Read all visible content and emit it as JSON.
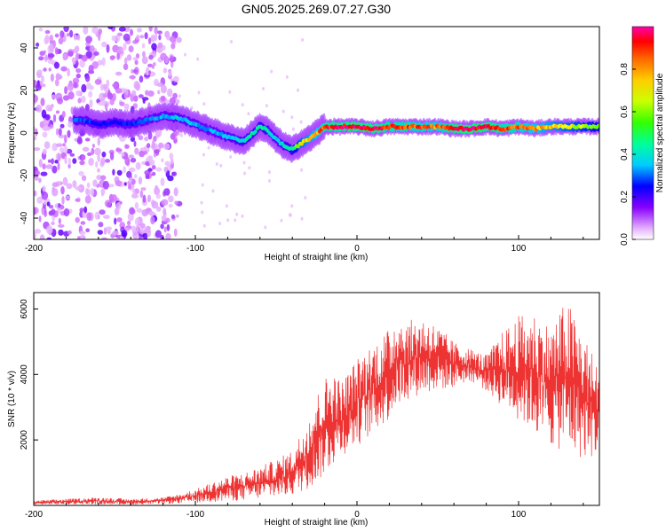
{
  "figure_title": "GN05.2025.269.07.27.G30",
  "chart_data": [
    {
      "type": "heatmap",
      "title": "GN05.2025.269.07.27.G30",
      "xlabel": "Height of straight line (km)",
      "ylabel": "Frequency (Hz)",
      "xlim": [
        -200,
        150
      ],
      "ylim": [
        -50,
        50
      ],
      "xticks": [
        -200,
        -100,
        0,
        100
      ],
      "yticks": [
        -40,
        -20,
        0,
        20,
        40
      ],
      "colorbar": {
        "label": "Normalized spectral amplitude",
        "range": [
          0.0,
          1.0
        ],
        "ticks": [
          0.0,
          0.2,
          0.4,
          0.6,
          0.8
        ],
        "colormap": [
          "#ffffff",
          "#cc66ff",
          "#6600ff",
          "#0000ff",
          "#00ccff",
          "#00ff66",
          "#66ff00",
          "#ffff00",
          "#ff8800",
          "#ff0000",
          "#ff00aa"
        ]
      },
      "ridge": {
        "description": "Dominant frequency track (Hz) versus height (km)",
        "x": [
          -170,
          -160,
          -150,
          -140,
          -130,
          -120,
          -110,
          -100,
          -90,
          -80,
          -70,
          -60,
          -55,
          -50,
          -45,
          -40,
          -35,
          -30,
          -25,
          -20,
          -10,
          0,
          10,
          20,
          30,
          40,
          50,
          60,
          70,
          80,
          90,
          100,
          110,
          120,
          130,
          140,
          150
        ],
        "freq": [
          6,
          4,
          5,
          4,
          6,
          8,
          7,
          4,
          1,
          -2,
          -4,
          3,
          1,
          -3,
          -6,
          -8,
          -5,
          -3,
          0,
          3,
          3,
          3,
          2,
          3,
          3,
          3,
          3,
          2,
          2,
          3,
          2,
          3,
          2,
          3,
          3,
          3,
          3
        ],
        "amplitude": [
          0.35,
          0.3,
          0.3,
          0.32,
          0.35,
          0.4,
          0.42,
          0.4,
          0.38,
          0.42,
          0.45,
          0.5,
          0.45,
          0.42,
          0.45,
          0.5,
          0.7,
          0.75,
          0.8,
          0.9,
          0.95,
          0.98,
          0.95,
          0.9,
          0.88,
          0.85,
          0.82,
          0.95,
          0.98,
          0.95,
          0.9,
          0.85,
          0.8,
          0.75,
          0.7,
          0.65,
          0.6
        ]
      },
      "noise_region": {
        "x_range": [
          -200,
          -110
        ],
        "freq_range": [
          -50,
          50
        ],
        "amplitude": 0.2
      }
    },
    {
      "type": "line",
      "xlabel": "Height of straight line (km)",
      "ylabel": "SNR (10 * v/v)",
      "xlim": [
        -200,
        150
      ],
      "ylim": [
        0,
        6500
      ],
      "xticks": [
        -200,
        -100,
        0,
        100
      ],
      "yticks": [
        2000,
        4000,
        6000
      ],
      "color": "#ee3333",
      "envelope": {
        "description": "Approximate SNR band (lower/upper envelope) versus height",
        "x": [
          -200,
          -180,
          -160,
          -140,
          -120,
          -110,
          -100,
          -90,
          -80,
          -70,
          -60,
          -50,
          -40,
          -35,
          -30,
          -25,
          -20,
          -15,
          -10,
          0,
          10,
          20,
          25,
          30,
          40,
          50,
          60,
          70,
          80,
          90,
          100,
          110,
          120,
          130,
          140,
          150
        ],
        "low": [
          20,
          30,
          30,
          20,
          40,
          60,
          80,
          100,
          120,
          150,
          200,
          250,
          300,
          400,
          500,
          700,
          900,
          1200,
          1500,
          1800,
          2200,
          2600,
          3000,
          3200,
          3400,
          3500,
          3600,
          3800,
          3500,
          3000,
          2600,
          2200,
          1800,
          1600,
          1400,
          1500
        ],
        "high": [
          150,
          200,
          250,
          200,
          250,
          350,
          500,
          700,
          900,
          1000,
          1200,
          1400,
          1700,
          2200,
          2800,
          3400,
          3900,
          4200,
          3800,
          4500,
          5000,
          5400,
          6000,
          5600,
          5800,
          5500,
          5000,
          4800,
          4600,
          5300,
          5800,
          5900,
          5500,
          6300,
          5300,
          4200
        ]
      }
    }
  ]
}
